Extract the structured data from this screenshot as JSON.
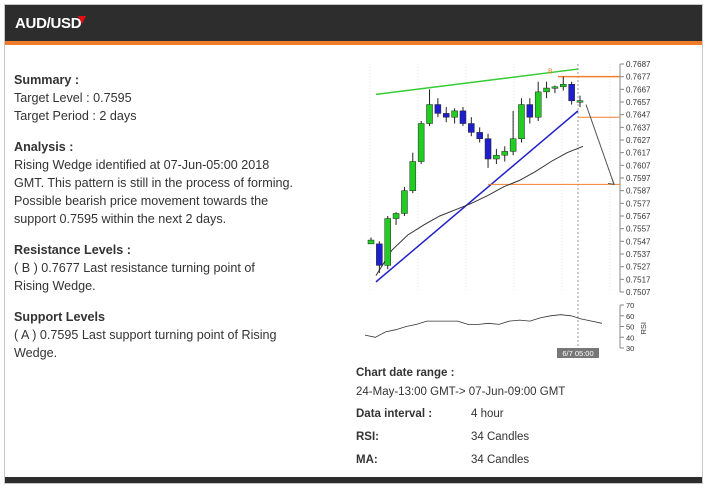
{
  "header": {
    "title": "AUD/USD",
    "arrow_color": "#e01010"
  },
  "summary": {
    "heading": "Summary :",
    "target_level": "Target Level : 0.7595",
    "target_period": "Target Period : 2 days"
  },
  "analysis": {
    "heading": "Analysis :",
    "text": "Rising Wedge identified at 07-Jun-05:00 2018 GMT. This pattern is still in the process of forming. Possible bearish price movement towards the support 0.7595 within the next 2 days."
  },
  "resistance": {
    "heading": "Resistance Levels :",
    "text": "( B ) 0.7677  Last resistance turning point of Rising Wedge."
  },
  "support": {
    "heading": "Support Levels",
    "text": "( A ) 0.7595  Last support turning point of Rising Wedge."
  },
  "info": {
    "date_range_label": "Chart date range :",
    "date_range_value": "24-May-13:00 GMT-> 07-Jun-09:00 GMT",
    "interval_label": "Data interval :",
    "interval_value": "4 hour",
    "rsi_label": "RSI:",
    "rsi_value": "34 Candles",
    "ma_label": "MA:",
    "ma_value": "34 Candles"
  },
  "chart_data": {
    "type": "candlestick",
    "price_axis": {
      "min": 0.7507,
      "max": 0.7687,
      "step": 0.001,
      "decimals": 4
    },
    "rsi_axis": {
      "label": "RSI",
      "ticks": [
        30,
        40,
        50,
        60,
        70
      ]
    },
    "time_label": "6/7 05:00",
    "marker_label": "B",
    "colors": {
      "up": "#22cc22",
      "down": "#1e1ecc",
      "wedge_top": "#33cc33",
      "wedge_bottom": "#2222cc",
      "level": "#f08030",
      "ma": "#333333"
    },
    "candles": [
      {
        "o": 0.7545,
        "h": 0.755,
        "l": 0.7546,
        "c": 0.7548
      },
      {
        "o": 0.7545,
        "h": 0.7547,
        "l": 0.7522,
        "c": 0.7528
      },
      {
        "o": 0.7528,
        "h": 0.7567,
        "l": 0.7525,
        "c": 0.7565
      },
      {
        "o": 0.7565,
        "h": 0.757,
        "l": 0.756,
        "c": 0.7569
      },
      {
        "o": 0.7569,
        "h": 0.759,
        "l": 0.7567,
        "c": 0.7587
      },
      {
        "o": 0.7587,
        "h": 0.7617,
        "l": 0.7585,
        "c": 0.761
      },
      {
        "o": 0.761,
        "h": 0.7642,
        "l": 0.7608,
        "c": 0.764
      },
      {
        "o": 0.764,
        "h": 0.7667,
        "l": 0.7638,
        "c": 0.7655
      },
      {
        "o": 0.7655,
        "h": 0.766,
        "l": 0.7645,
        "c": 0.7648
      },
      {
        "o": 0.7648,
        "h": 0.7653,
        "l": 0.7641,
        "c": 0.7645
      },
      {
        "o": 0.7645,
        "h": 0.7652,
        "l": 0.764,
        "c": 0.765
      },
      {
        "o": 0.765,
        "h": 0.7653,
        "l": 0.7638,
        "c": 0.764
      },
      {
        "o": 0.764,
        "h": 0.7645,
        "l": 0.763,
        "c": 0.7633
      },
      {
        "o": 0.7633,
        "h": 0.7637,
        "l": 0.7625,
        "c": 0.7628
      },
      {
        "o": 0.7628,
        "h": 0.7632,
        "l": 0.7605,
        "c": 0.7612
      },
      {
        "o": 0.7612,
        "h": 0.762,
        "l": 0.7608,
        "c": 0.7615
      },
      {
        "o": 0.7615,
        "h": 0.7622,
        "l": 0.761,
        "c": 0.7618
      },
      {
        "o": 0.7618,
        "h": 0.765,
        "l": 0.7615,
        "c": 0.7628
      },
      {
        "o": 0.7628,
        "h": 0.766,
        "l": 0.7625,
        "c": 0.7655
      },
      {
        "o": 0.7655,
        "h": 0.766,
        "l": 0.764,
        "c": 0.7645
      },
      {
        "o": 0.7645,
        "h": 0.7673,
        "l": 0.7642,
        "c": 0.7665
      },
      {
        "o": 0.7665,
        "h": 0.7673,
        "l": 0.766,
        "c": 0.7668
      },
      {
        "o": 0.7668,
        "h": 0.767,
        "l": 0.7664,
        "c": 0.7669
      },
      {
        "o": 0.7669,
        "h": 0.7677,
        "l": 0.7666,
        "c": 0.7671
      },
      {
        "o": 0.7671,
        "h": 0.7673,
        "l": 0.7655,
        "c": 0.7658
      },
      {
        "o": 0.7658,
        "h": 0.7662,
        "l": 0.7653,
        "c": 0.7658
      }
    ],
    "ma": [
      0.752,
      0.754,
      0.7552,
      0.756,
      0.7567,
      0.7572,
      0.7577,
      0.7583,
      0.759,
      0.7595,
      0.7602,
      0.761,
      0.7617,
      0.7622
    ],
    "rsi": [
      42,
      40,
      45,
      47,
      50,
      52,
      55,
      55,
      55,
      55,
      52,
      52,
      53,
      52,
      55,
      56,
      55,
      58,
      60,
      61,
      60,
      57,
      55,
      53
    ],
    "wedge_top": [
      [
        0.7663,
        0.7683
      ]
    ],
    "wedge_bottom": [
      [
        0.7515,
        0.765
      ]
    ],
    "resistance_level": 0.7677,
    "support_level": 0.7595,
    "forecast_level": 0.7592
  }
}
